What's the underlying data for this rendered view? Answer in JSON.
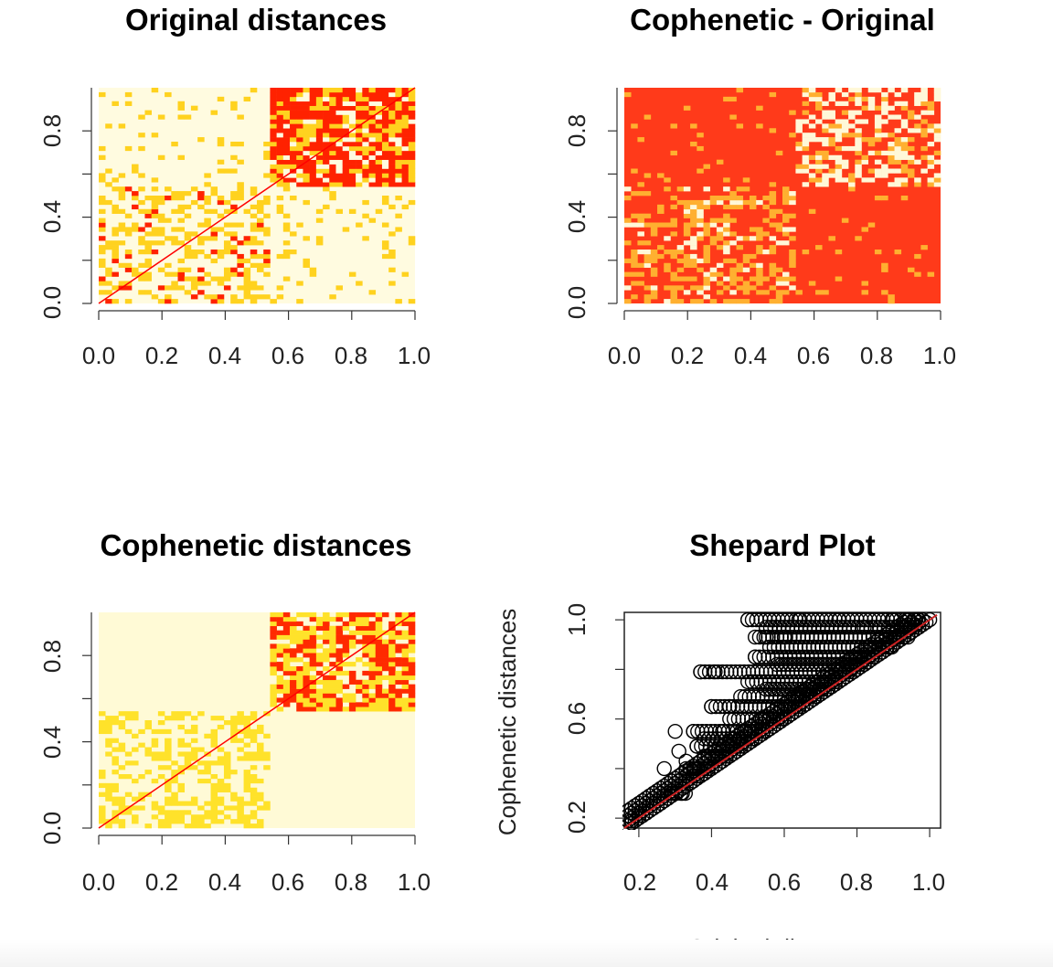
{
  "chart_data": [
    {
      "type": "heatmap",
      "title": "Original distances",
      "xticks": [
        "0.0",
        "0.2",
        "0.4",
        "0.6",
        "0.8",
        "1.0"
      ],
      "yticks": [
        "0.0",
        "0.4",
        "0.8"
      ],
      "xlim": [
        0,
        1
      ],
      "ylim": [
        0,
        1
      ],
      "cluster_split": 0.54,
      "diagonal_line": true,
      "colors": {
        "low": "#ff2200",
        "mid": "#ffd21f",
        "high": "#fffbe0",
        "diagonal": "#ff0000"
      }
    },
    {
      "type": "heatmap",
      "title": "Cophenetic - Original",
      "xticks": [
        "0.0",
        "0.2",
        "0.4",
        "0.6",
        "0.8",
        "1.0"
      ],
      "yticks": [
        "0.0",
        "0.4",
        "0.8"
      ],
      "xlim": [
        0,
        1
      ],
      "ylim": [
        0,
        1
      ],
      "cluster_split": 0.54,
      "diagonal_line": false,
      "colors": {
        "low": "#ff3a1a",
        "mid": "#ffb030",
        "high": "#fff8d8"
      }
    },
    {
      "type": "heatmap",
      "title": "Cophenetic distances",
      "xticks": [
        "0.0",
        "0.2",
        "0.4",
        "0.6",
        "0.8",
        "1.0"
      ],
      "yticks": [
        "0.0",
        "0.4",
        "0.8"
      ],
      "xlim": [
        0,
        1
      ],
      "ylim": [
        0,
        1
      ],
      "cluster_split": 0.54,
      "diagonal_line": true,
      "colors": {
        "low": "#ff2a00",
        "mid": "#ffe22a",
        "high": "#fffad6",
        "diagonal": "#ff0000"
      }
    },
    {
      "type": "scatter",
      "title": "Shepard Plot",
      "xlabel": "Original distances",
      "ylabel": "Cophenetic distances",
      "xticks": [
        "0.2",
        "0.4",
        "0.6",
        "0.8",
        "1.0"
      ],
      "yticks": [
        "0.2",
        "0.6",
        "1.0"
      ],
      "xlim": [
        0.16,
        1.03
      ],
      "ylim": [
        0.16,
        1.03
      ],
      "reference_line": {
        "from": [
          0.16,
          0.16
        ],
        "to": [
          1.02,
          1.02
        ],
        "color": "#cc2222"
      },
      "points": [
        {
          "x": 0.18,
          "y": 0.19
        },
        {
          "x": 0.2,
          "y": 0.21
        },
        {
          "x": 0.22,
          "y": 0.22
        },
        {
          "x": 0.25,
          "y": 0.25
        },
        {
          "x": 0.27,
          "y": 0.4
        },
        {
          "x": 0.28,
          "y": 0.28
        },
        {
          "x": 0.29,
          "y": 0.3
        },
        {
          "x": 0.3,
          "y": 0.55
        },
        {
          "x": 0.31,
          "y": 0.47
        },
        {
          "x": 0.32,
          "y": 0.3
        },
        {
          "x": 0.33,
          "y": 0.43
        },
        {
          "x": 0.35,
          "y": 0.4
        },
        {
          "x": 0.35,
          "y": 0.55
        },
        {
          "x": 0.36,
          "y": 0.49
        },
        {
          "x": 0.37,
          "y": 0.79
        },
        {
          "x": 0.38,
          "y": 0.38
        },
        {
          "x": 0.4,
          "y": 0.65
        },
        {
          "x": 0.41,
          "y": 0.79
        },
        {
          "x": 0.43,
          "y": 0.55
        },
        {
          "x": 0.45,
          "y": 0.65
        },
        {
          "x": 0.5,
          "y": 1.0
        },
        {
          "x": 0.52,
          "y": 0.85
        },
        {
          "x": 0.55,
          "y": 0.93
        },
        {
          "x": 0.56,
          "y": 1.0
        },
        {
          "x": 0.6,
          "y": 0.93
        },
        {
          "x": 0.64,
          "y": 1.0
        },
        {
          "x": 0.7,
          "y": 0.93
        },
        {
          "x": 0.75,
          "y": 1.0
        },
        {
          "x": 0.82,
          "y": 0.97
        },
        {
          "x": 0.9,
          "y": 1.0
        },
        {
          "x": 0.97,
          "y": 1.0
        },
        {
          "x": 1.0,
          "y": 1.0
        }
      ],
      "bands": [
        {
          "y": 1.0,
          "x0": 0.5,
          "x1": 0.99
        },
        {
          "y": 0.97,
          "x0": 0.55,
          "x1": 0.97
        },
        {
          "y": 0.93,
          "x0": 0.52,
          "x1": 0.95
        },
        {
          "y": 0.89,
          "x0": 0.56,
          "x1": 0.9
        },
        {
          "y": 0.85,
          "x0": 0.52,
          "x1": 0.85
        },
        {
          "y": 0.82,
          "x0": 0.58,
          "x1": 0.82
        },
        {
          "y": 0.79,
          "x0": 0.37,
          "x1": 0.79
        },
        {
          "y": 0.75,
          "x0": 0.5,
          "x1": 0.75
        },
        {
          "y": 0.72,
          "x0": 0.55,
          "x1": 0.72
        },
        {
          "y": 0.69,
          "x0": 0.48,
          "x1": 0.69
        },
        {
          "y": 0.65,
          "x0": 0.4,
          "x1": 0.65
        },
        {
          "y": 0.6,
          "x0": 0.45,
          "x1": 0.6
        },
        {
          "y": 0.55,
          "x0": 0.35,
          "x1": 0.55
        },
        {
          "y": 0.52,
          "x0": 0.38,
          "x1": 0.52
        },
        {
          "y": 0.49,
          "x0": 0.36,
          "x1": 0.49
        },
        {
          "y": 0.45,
          "x0": 0.38,
          "x1": 0.45
        },
        {
          "y": 0.4,
          "x0": 0.33,
          "x1": 0.4
        },
        {
          "y": 0.37,
          "x0": 0.35,
          "x1": 0.37
        },
        {
          "y": 0.3,
          "x0": 0.28,
          "x1": 0.33
        }
      ]
    }
  ]
}
